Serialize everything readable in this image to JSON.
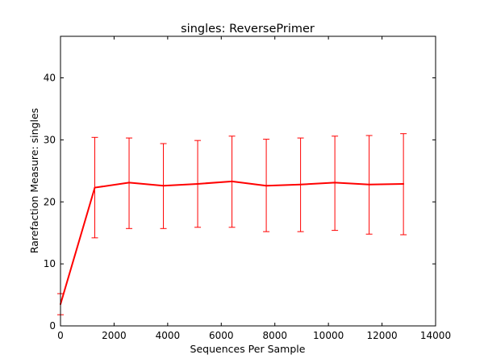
{
  "chart_data": {
    "type": "line",
    "title": "singles: ReversePrimer",
    "xlabel": "Sequences Per Sample",
    "ylabel": "Rarefaction Measure: singles",
    "xlim": [
      0,
      14000
    ],
    "ylim": [
      0,
      46.7
    ],
    "xticks": [
      0,
      2000,
      4000,
      6000,
      8000,
      10000,
      12000,
      14000
    ],
    "yticks": [
      0,
      10,
      20,
      30,
      40
    ],
    "grid": false,
    "series_color": "#ff0000",
    "series": [
      {
        "x": [
          0,
          1280,
          2560,
          3840,
          5120,
          6400,
          7680,
          8960,
          10240,
          11520,
          12800
        ],
        "y": [
          3.5,
          22.3,
          23.1,
          22.6,
          22.9,
          23.3,
          22.6,
          22.8,
          23.1,
          22.8,
          22.9
        ],
        "error_low": [
          1.8,
          14.2,
          15.7,
          15.7,
          15.9,
          15.9,
          15.2,
          15.2,
          15.4,
          14.8,
          14.7
        ],
        "error_high": [
          5.2,
          30.4,
          30.3,
          29.4,
          29.9,
          30.6,
          30.1,
          30.3,
          30.6,
          30.7,
          31.0
        ]
      }
    ]
  }
}
